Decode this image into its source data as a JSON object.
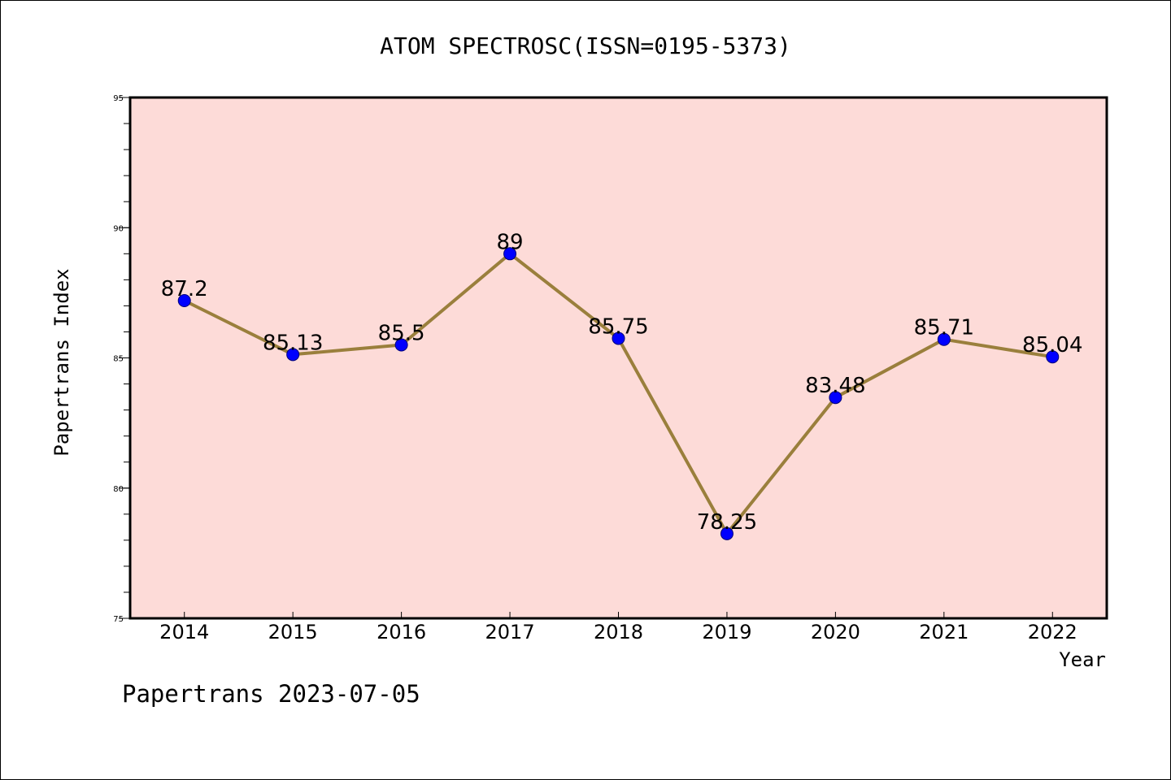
{
  "chart_data": {
    "type": "line",
    "title": "ATOM SPECTROSC(ISSN=0195-5373)",
    "xlabel": "Year",
    "ylabel": "Papertrans Index",
    "footer": "Papertrans 2023-07-05",
    "categories": [
      "2014",
      "2015",
      "2016",
      "2017",
      "2018",
      "2019",
      "2020",
      "2021",
      "2022"
    ],
    "series": [
      {
        "values": [
          87.2,
          85.13,
          85.5,
          89,
          85.75,
          78.25,
          83.48,
          85.71,
          85.04
        ],
        "labels": [
          "87.2",
          "85.13",
          "85.5",
          "89",
          "85.75",
          "78.25",
          "83.48",
          "85.71",
          "85.04"
        ]
      }
    ],
    "ylim": [
      75,
      95
    ],
    "yticks": [
      "75",
      "80",
      "85",
      "90",
      "95"
    ],
    "grid": false,
    "legend": "none",
    "colors": {
      "plot_background": "#fddbd8",
      "line": "#9a7f3c",
      "marker": "#0000ff"
    }
  }
}
